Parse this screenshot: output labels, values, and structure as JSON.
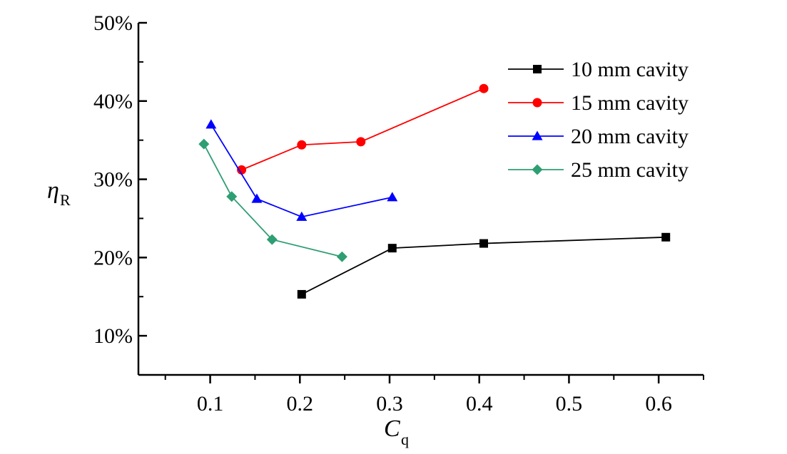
{
  "chart_data": {
    "type": "line",
    "xlabel": "C",
    "xlabel_sub": "q",
    "ylabel": "η",
    "ylabel_sub": "R",
    "xlim": [
      0.02,
      0.65
    ],
    "ylim": [
      0.05,
      0.5
    ],
    "x_ticks": [
      0.1,
      0.2,
      0.3,
      0.4,
      0.5,
      0.6
    ],
    "x_tick_labels": [
      "0.1",
      "0.2",
      "0.3",
      "0.4",
      "0.5",
      "0.6"
    ],
    "y_ticks": [
      0.1,
      0.2,
      0.3,
      0.4,
      0.5
    ],
    "y_tick_labels": [
      "10%",
      "20%",
      "30%",
      "40%",
      "50%"
    ],
    "grid": false,
    "legend_position": "top-right",
    "series": [
      {
        "name": "10 mm cavity",
        "color": "#000000",
        "marker": "square",
        "x": [
          0.202,
          0.303,
          0.405,
          0.608
        ],
        "y": [
          0.153,
          0.212,
          0.218,
          0.226
        ]
      },
      {
        "name": "15 mm cavity",
        "color": "#ff0000",
        "marker": "circle",
        "x": [
          0.135,
          0.202,
          0.268,
          0.405
        ],
        "y": [
          0.312,
          0.344,
          0.348,
          0.416
        ]
      },
      {
        "name": "20 mm cavity",
        "color": "#0000ff",
        "marker": "triangle",
        "x": [
          0.101,
          0.152,
          0.202,
          0.303
        ],
        "y": [
          0.37,
          0.275,
          0.252,
          0.277
        ]
      },
      {
        "name": "25 mm cavity",
        "color": "#2e9e73",
        "marker": "diamond",
        "x": [
          0.093,
          0.124,
          0.169,
          0.247
        ],
        "y": [
          0.345,
          0.278,
          0.223,
          0.201
        ]
      }
    ]
  }
}
